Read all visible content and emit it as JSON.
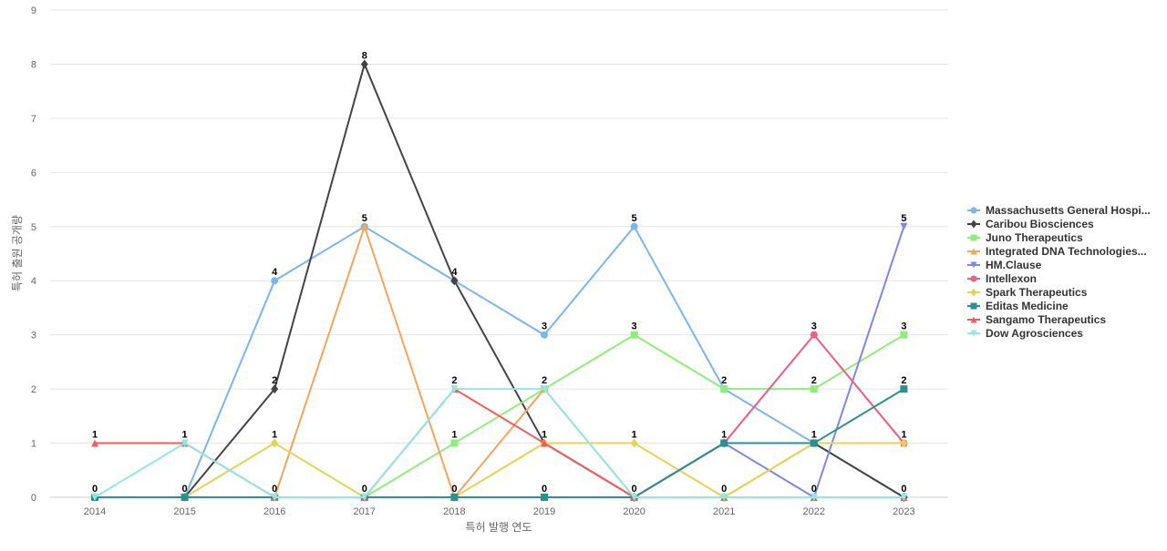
{
  "chart_data": {
    "type": "line",
    "title": "",
    "xlabel": "특허 발행 연도",
    "ylabel": "특허 출원 공개량",
    "x": [
      "2014",
      "2015",
      "2016",
      "2017",
      "2018",
      "2019",
      "2020",
      "2021",
      "2022",
      "2023"
    ],
    "ylim": [
      0,
      9
    ],
    "yticks": [
      0,
      1,
      2,
      3,
      4,
      5,
      6,
      7,
      8,
      9
    ],
    "grid": true,
    "legend_position": "right",
    "series": [
      {
        "name": "Massachusetts General Hospi...",
        "color": "#7cb5ec",
        "marker": "circle",
        "values": [
          0,
          0,
          4,
          5,
          4,
          3,
          5,
          2,
          1,
          0
        ]
      },
      {
        "name": "Caribou Biosciences",
        "color": "#434348",
        "marker": "diamond",
        "values": [
          0,
          0,
          2,
          8,
          4,
          1,
          0,
          1,
          1,
          0
        ]
      },
      {
        "name": "Juno Therapeutics",
        "color": "#90ed7d",
        "marker": "square",
        "values": [
          0,
          0,
          0,
          0,
          1,
          2,
          3,
          2,
          2,
          3
        ]
      },
      {
        "name": "Integrated DNA Technologies...",
        "color": "#f7a35c",
        "marker": "triangle",
        "values": [
          0,
          0,
          0,
          5,
          0,
          2,
          0,
          0,
          1,
          1
        ]
      },
      {
        "name": "HM.Clause",
        "color": "#8085e9",
        "marker": "triangle-down",
        "values": [
          0,
          0,
          0,
          0,
          0,
          0,
          0,
          1,
          0,
          5
        ]
      },
      {
        "name": "Intellexon",
        "color": "#f15c80",
        "marker": "circle",
        "values": [
          0,
          0,
          0,
          0,
          0,
          0,
          0,
          1,
          3,
          1
        ]
      },
      {
        "name": "Spark Therapeutics",
        "color": "#e4d354",
        "marker": "diamond",
        "values": [
          0,
          0,
          1,
          0,
          0,
          1,
          1,
          0,
          1,
          1
        ]
      },
      {
        "name": "Editas Medicine",
        "color": "#2b908f",
        "marker": "square",
        "values": [
          0,
          0,
          0,
          0,
          0,
          0,
          0,
          1,
          1,
          2
        ]
      },
      {
        "name": "Sangamo Therapeutics",
        "color": "#f45b5b",
        "marker": "triangle",
        "values": [
          1,
          1,
          0,
          0,
          2,
          1,
          0,
          0,
          0,
          0
        ]
      },
      {
        "name": "Dow Agrosciences",
        "color": "#91e8e1",
        "marker": "triangle-down",
        "values": [
          0,
          1,
          0,
          0,
          2,
          2,
          0,
          0,
          0,
          0
        ]
      }
    ],
    "data_labels": [
      {
        "x": "2014",
        "text": "1",
        "value": 1
      },
      {
        "x": "2014",
        "text": "0",
        "value": 0
      },
      {
        "x": "2015",
        "text": "1",
        "value": 1
      },
      {
        "x": "2015",
        "text": "0",
        "value": 0
      },
      {
        "x": "2016",
        "text": "4",
        "value": 4
      },
      {
        "x": "2016",
        "text": "2",
        "value": 2
      },
      {
        "x": "2016",
        "text": "1",
        "value": 1
      },
      {
        "x": "2016",
        "text": "0",
        "value": 0
      },
      {
        "x": "2017",
        "text": "8",
        "value": 8
      },
      {
        "x": "2017",
        "text": "5",
        "value": 5
      },
      {
        "x": "2017",
        "text": "0",
        "value": 0
      },
      {
        "x": "2018",
        "text": "4",
        "value": 4
      },
      {
        "x": "2018",
        "text": "2",
        "value": 2
      },
      {
        "x": "2018",
        "text": "1",
        "value": 1
      },
      {
        "x": "2018",
        "text": "0",
        "value": 0
      },
      {
        "x": "2019",
        "text": "3",
        "value": 3
      },
      {
        "x": "2019",
        "text": "2",
        "value": 2
      },
      {
        "x": "2019",
        "text": "1",
        "value": 1
      },
      {
        "x": "2019",
        "text": "0",
        "value": 0
      },
      {
        "x": "2020",
        "text": "5",
        "value": 5
      },
      {
        "x": "2020",
        "text": "3",
        "value": 3
      },
      {
        "x": "2020",
        "text": "1",
        "value": 1
      },
      {
        "x": "2020",
        "text": "0",
        "value": 0
      },
      {
        "x": "2021",
        "text": "2",
        "value": 2
      },
      {
        "x": "2021",
        "text": "1",
        "value": 1
      },
      {
        "x": "2021",
        "text": "0",
        "value": 0
      },
      {
        "x": "2022",
        "text": "3",
        "value": 3
      },
      {
        "x": "2022",
        "text": "2",
        "value": 2
      },
      {
        "x": "2022",
        "text": "1",
        "value": 1
      },
      {
        "x": "2022",
        "text": "0",
        "value": 0
      },
      {
        "x": "2023",
        "text": "5",
        "value": 5
      },
      {
        "x": "2023",
        "text": "3",
        "value": 3
      },
      {
        "x": "2023",
        "text": "2",
        "value": 2
      },
      {
        "x": "2023",
        "text": "1",
        "value": 1
      },
      {
        "x": "2023",
        "text": "0",
        "value": 0
      }
    ]
  }
}
